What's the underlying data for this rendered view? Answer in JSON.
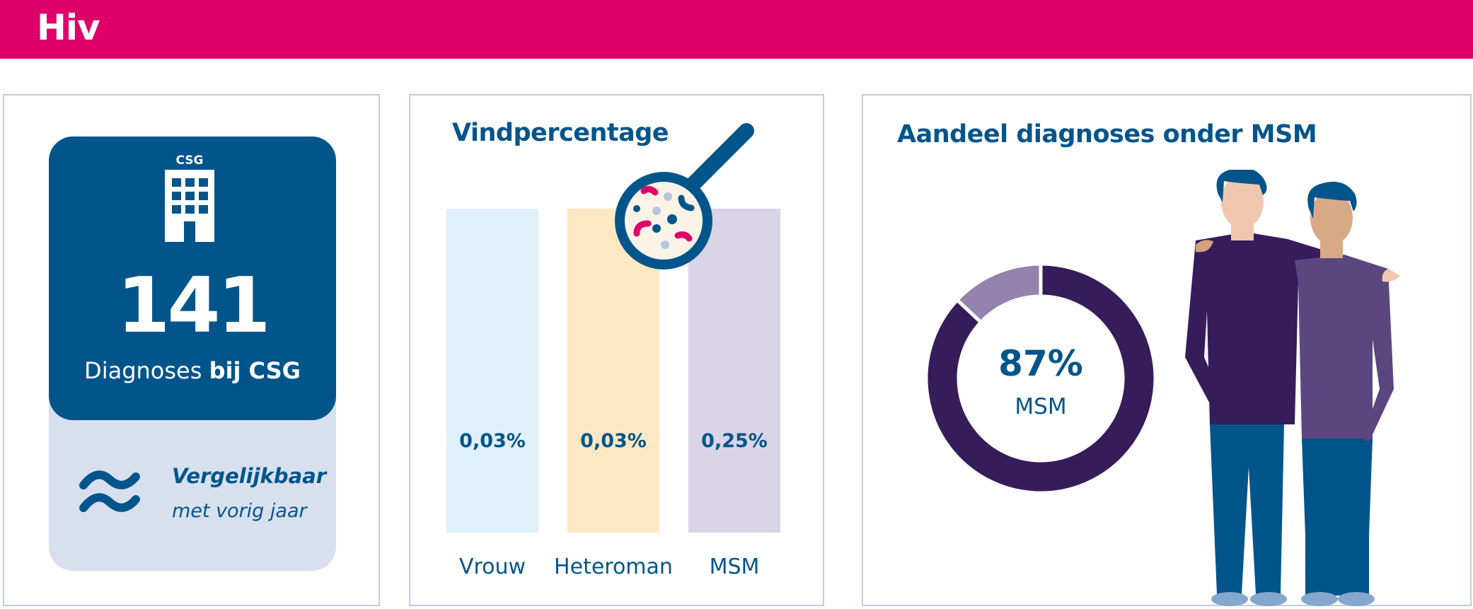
{
  "header": {
    "title": "Hiv",
    "color": "#E0006A"
  },
  "csg_panel": {
    "icon_label": "CSG",
    "icon": "building-icon",
    "count": "141",
    "caption_regular": "Diagnoses",
    "caption_bold": "bij CSG",
    "trend_icon": "approximately-equal-icon",
    "trend_bold": "Vergelijkbaar",
    "trend_text": "met vorig jaar"
  },
  "vind_panel": {
    "title": "Vindpercentage",
    "icon": "magnifier-bacteria-icon",
    "chart_data": {
      "type": "bar",
      "categories": [
        "Vrouw",
        "Heteroman",
        "MSM"
      ],
      "values": [
        0.03,
        0.03,
        0.25
      ],
      "value_labels": [
        "0,03%",
        "0,03%",
        "0,25%"
      ],
      "colors": [
        "#DFF0FB",
        "#FDE8C3",
        "#D9D4E6"
      ]
    }
  },
  "msm_panel": {
    "title": "Aandeel diagnoses onder MSM",
    "chart_data": {
      "type": "pie",
      "values": [
        87,
        13
      ],
      "colors": [
        "#371C5B",
        "#9583AE"
      ],
      "center_value": "87%",
      "center_label": "MSM"
    },
    "illustration": "two-men-illustration"
  }
}
